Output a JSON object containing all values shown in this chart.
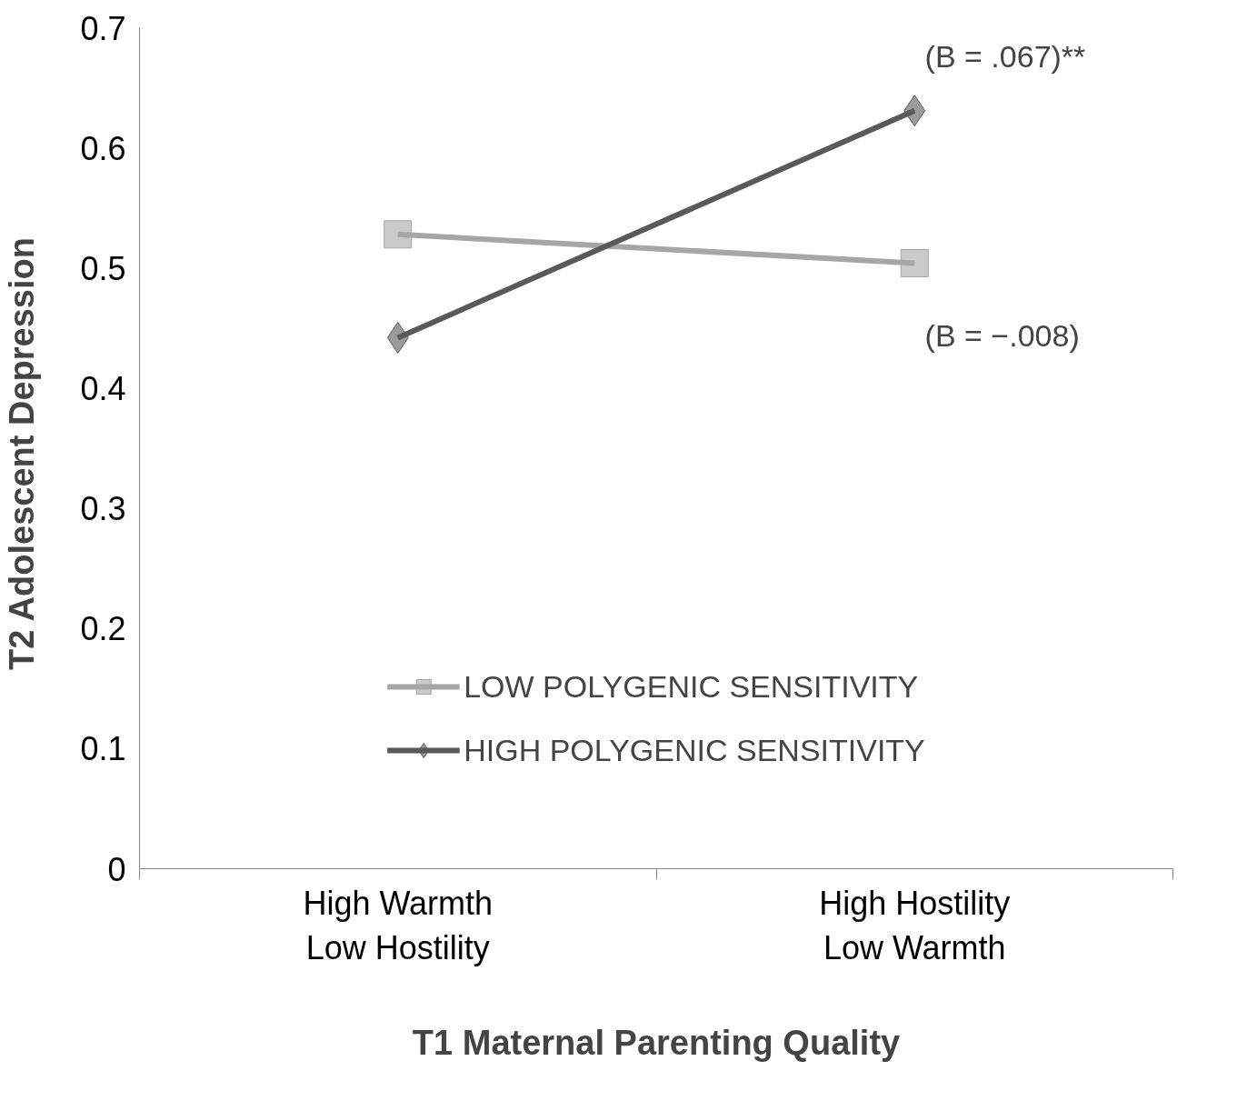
{
  "chart_data": {
    "type": "line",
    "xlabel": "T1 Maternal Parenting Quality",
    "ylabel": "T2 Adolescent  Depression",
    "categories": [
      "High Warmth\nLow Hostility",
      "High Hostility\nLow Warmth"
    ],
    "series": [
      {
        "name": "LOW POLYGENIC SENSITIVITY",
        "color": "#a6a6a6",
        "values": [
          0.528,
          0.504
        ],
        "marker": "square"
      },
      {
        "name": "HIGH POLYGENIC SENSITIVITY",
        "color": "#595959",
        "values": [
          0.442,
          0.631
        ],
        "marker": "diamond"
      }
    ],
    "annotations": [
      "(B = .067)**",
      "(B = −.008)"
    ],
    "ylim": [
      0,
      0.7
    ],
    "yticks": [
      0,
      0.1,
      0.2,
      0.3,
      0.4,
      0.5,
      0.6,
      0.7
    ],
    "grid": false,
    "legend": "bottom",
    "line_style": "solid"
  }
}
